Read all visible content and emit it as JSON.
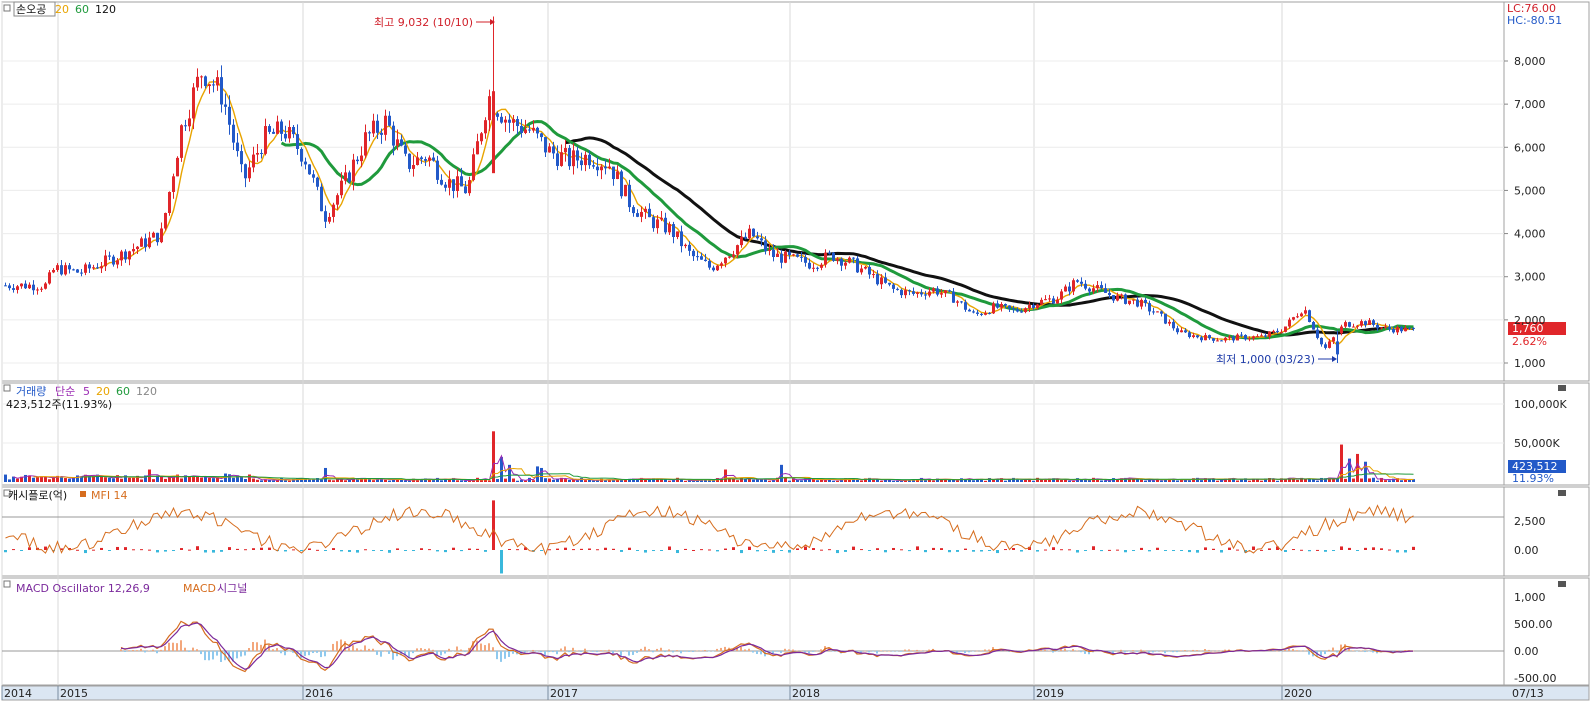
{
  "window": {
    "stock_name": "손오공"
  },
  "colors": {
    "up": "#e0262a",
    "down": "#2259c8",
    "ma20": "#e8a400",
    "ma60": "#1f9a3c",
    "ma120": "#111111",
    "mfi": "#d66d1e",
    "macd": "#7b2a9c",
    "signal": "#d66d1e",
    "osc_up": "#f3a77c",
    "osc_down": "#8fc9ee",
    "cash_up": "#e0262a",
    "cash_down": "#39b8dc",
    "price_badge": "#e0262a",
    "vol_badge": "#2259c8"
  },
  "price_panel": {
    "legend": [
      {
        "label": "손오공",
        "color": "#111111"
      },
      {
        "label": "20",
        "color": "#e8a400"
      },
      {
        "label": "60",
        "color": "#1f9a3c"
      },
      {
        "label": "120",
        "color": "#111111"
      }
    ],
    "lc_text": "LC:76.00",
    "hc_text": "HC:-80.51",
    "y_ticks": [
      "8,000",
      "7,000",
      "6,000",
      "5,000",
      "4,000",
      "3,000",
      "2,000",
      "1,000"
    ],
    "ylim": [
      600,
      9300
    ],
    "last_price": "1,760",
    "last_change": "2.62%",
    "high_annotation": "최고 9,032 (10/10)",
    "low_annotation": "최저 1,000 (03/23)"
  },
  "volume_panel": {
    "legend": [
      {
        "label": "거래량",
        "color": "#2259c8"
      },
      {
        "label": "단순",
        "color": "#9b2bb3"
      },
      {
        "label": "5",
        "color": "#9b2bb3"
      },
      {
        "label": "20",
        "color": "#e8a400"
      },
      {
        "label": "60",
        "color": "#1f9a3c"
      },
      {
        "label": "120",
        "color": "#888888"
      }
    ],
    "sub_label": "423,512주(11.93%)",
    "y_ticks": [
      "100,000K",
      "50,000K"
    ],
    "last_volume": "423,512",
    "last_pct": "11.93%"
  },
  "money_panel": {
    "legend": [
      {
        "label": "캐시플로(억)",
        "color": "#111111"
      },
      {
        "label": "MFI 14",
        "color": "#d66d1e"
      }
    ],
    "y_ticks": [
      "2,500",
      "0.00"
    ]
  },
  "macd_panel": {
    "legend": [
      {
        "label": "MACD Oscillator 12,26,9",
        "color": "#7b2a9c"
      },
      {
        "label": "MACD",
        "color": "#d66d1e"
      },
      {
        "label": "시그널",
        "color": "#7b2a9c"
      }
    ],
    "y_ticks": [
      "1,000",
      "500.00",
      "0.00",
      "-500.00"
    ]
  },
  "x_axis": {
    "labels": [
      "2014",
      "2015",
      "2016",
      "2017",
      "2018",
      "2019",
      "2020"
    ],
    "end_label": "07/13"
  },
  "chart_data": {
    "type": "candlestick",
    "price_unit": "KRW",
    "x_range": [
      "2014-10",
      "2020-07-13"
    ],
    "monthly_close_approx": [
      {
        "date": "2014-10",
        "close": 2800
      },
      {
        "date": "2014-12",
        "close": 3200
      },
      {
        "date": "2015-02",
        "close": 3100
      },
      {
        "date": "2015-04",
        "close": 3500
      },
      {
        "date": "2015-06",
        "close": 4000
      },
      {
        "date": "2015-07",
        "close": 6500
      },
      {
        "date": "2015-08",
        "close": 7800
      },
      {
        "date": "2015-09",
        "close": 7200
      },
      {
        "date": "2015-10",
        "close": 5200
      },
      {
        "date": "2015-11",
        "close": 6200
      },
      {
        "date": "2015-12",
        "close": 6400
      },
      {
        "date": "2016-01",
        "close": 5800
      },
      {
        "date": "2016-02",
        "close": 4400
      },
      {
        "date": "2016-03",
        "close": 5200
      },
      {
        "date": "2016-04",
        "close": 6200
      },
      {
        "date": "2016-05",
        "close": 6600
      },
      {
        "date": "2016-06",
        "close": 5600
      },
      {
        "date": "2016-07",
        "close": 5800
      },
      {
        "date": "2016-08",
        "close": 5200
      },
      {
        "date": "2016-09",
        "close": 5000
      },
      {
        "date": "2016-10",
        "close": 7200
      },
      {
        "date": "2016-11",
        "close": 6600
      },
      {
        "date": "2016-12",
        "close": 6400
      },
      {
        "date": "2017-01",
        "close": 5900
      },
      {
        "date": "2017-02",
        "close": 5700
      },
      {
        "date": "2017-03",
        "close": 5800
      },
      {
        "date": "2017-04",
        "close": 5600
      },
      {
        "date": "2017-05",
        "close": 4700
      },
      {
        "date": "2017-06",
        "close": 4300
      },
      {
        "date": "2017-07",
        "close": 4100
      },
      {
        "date": "2017-08",
        "close": 3500
      },
      {
        "date": "2017-09",
        "close": 3200
      },
      {
        "date": "2017-10",
        "close": 3600
      },
      {
        "date": "2017-11",
        "close": 4000
      },
      {
        "date": "2017-12",
        "close": 3500
      },
      {
        "date": "2018-01",
        "close": 3400
      },
      {
        "date": "2018-02",
        "close": 3300
      },
      {
        "date": "2018-03",
        "close": 3500
      },
      {
        "date": "2018-04",
        "close": 3300
      },
      {
        "date": "2018-05",
        "close": 3000
      },
      {
        "date": "2018-06",
        "close": 2700
      },
      {
        "date": "2018-07",
        "close": 2600
      },
      {
        "date": "2018-08",
        "close": 2700
      },
      {
        "date": "2018-09",
        "close": 2500
      },
      {
        "date": "2018-10",
        "close": 2100
      },
      {
        "date": "2018-11",
        "close": 2300
      },
      {
        "date": "2018-12",
        "close": 2200
      },
      {
        "date": "2019-01",
        "close": 2400
      },
      {
        "date": "2019-02",
        "close": 2500
      },
      {
        "date": "2019-03",
        "close": 2900
      },
      {
        "date": "2019-04",
        "close": 2700
      },
      {
        "date": "2019-05",
        "close": 2500
      },
      {
        "date": "2019-06",
        "close": 2400
      },
      {
        "date": "2019-07",
        "close": 2100
      },
      {
        "date": "2019-08",
        "close": 1700
      },
      {
        "date": "2019-09",
        "close": 1600
      },
      {
        "date": "2019-10",
        "close": 1550
      },
      {
        "date": "2019-11",
        "close": 1600
      },
      {
        "date": "2019-12",
        "close": 1600
      },
      {
        "date": "2020-01",
        "close": 1800
      },
      {
        "date": "2020-02",
        "close": 2300
      },
      {
        "date": "2020-03",
        "close": 1300
      },
      {
        "date": "2020-04",
        "close": 1900
      },
      {
        "date": "2020-05",
        "close": 1950
      },
      {
        "date": "2020-06",
        "close": 1800
      },
      {
        "date": "2020-07",
        "close": 1760
      }
    ],
    "annotations": [
      {
        "label": "최고 9,032 (10/10)",
        "date": "2016-10",
        "value": 9032
      },
      {
        "label": "최저 1,000 (03/23)",
        "date": "2020-03",
        "value": 1000
      }
    ]
  }
}
